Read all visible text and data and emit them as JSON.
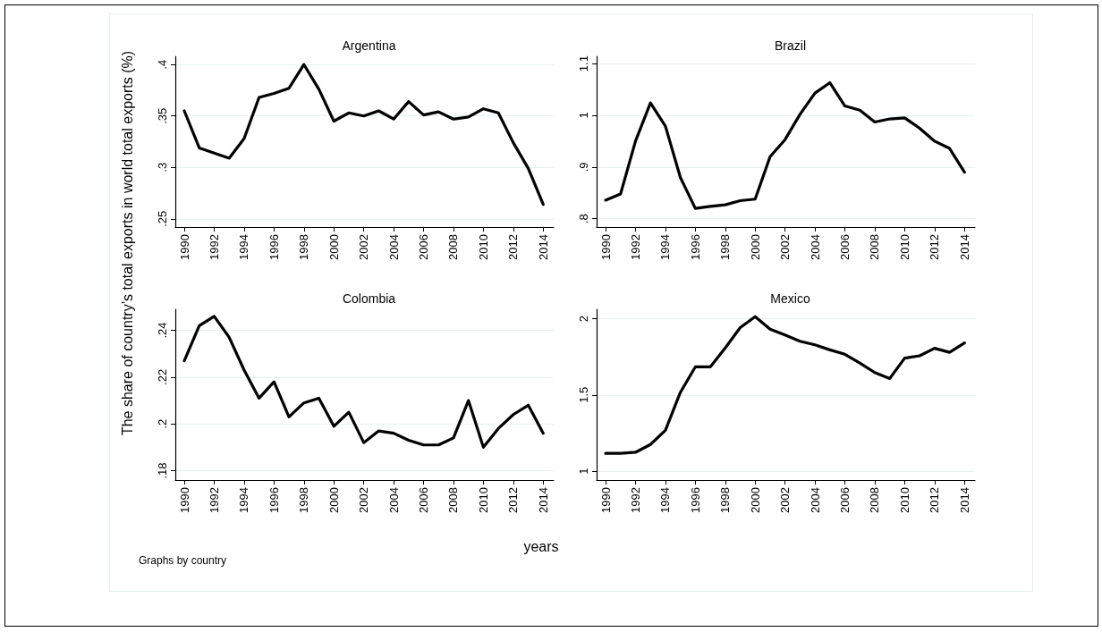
{
  "chart_data": [
    {
      "type": "line",
      "title": "Argentina",
      "ylabel": "The share of country’s total exports in world total exports (%)",
      "x": [
        1990,
        1991,
        1992,
        1993,
        1994,
        1995,
        1996,
        1997,
        1998,
        1999,
        2000,
        2001,
        2002,
        2003,
        2004,
        2005,
        2006,
        2007,
        2008,
        2009,
        2010,
        2011,
        2012,
        2013,
        2014
      ],
      "series": [
        {
          "color": "#000000",
          "values": [
            0.355,
            0.319,
            0.314,
            0.309,
            0.328,
            0.368,
            0.372,
            0.377,
            0.4,
            0.376,
            0.345,
            0.353,
            0.35,
            0.355,
            0.347,
            0.364,
            0.351,
            0.354,
            0.347,
            0.349,
            0.357,
            0.353,
            0.324,
            0.299,
            0.264
          ]
        }
      ],
      "xlim": [
        1989.4,
        2014.7
      ],
      "xticks": [
        1990,
        1992,
        1994,
        1996,
        1998,
        2000,
        2002,
        2004,
        2006,
        2008,
        2010,
        2012,
        2014
      ],
      "ylim": [
        0.242,
        0.408
      ],
      "yticks": [
        {
          "value": 0.25,
          "label": ".25"
        },
        {
          "value": 0.3,
          "label": ".3"
        },
        {
          "value": 0.35,
          "label": ".35"
        },
        {
          "value": 0.4,
          "label": ".4"
        }
      ],
      "grid": "y",
      "marker": "none",
      "line_style": "solid"
    },
    {
      "type": "line",
      "title": "Brazil",
      "x": [
        1990,
        1991,
        1992,
        1993,
        1994,
        1995,
        1996,
        1997,
        1998,
        1999,
        2000,
        2001,
        2002,
        2003,
        2004,
        2005,
        2006,
        2007,
        2008,
        2009,
        2010,
        2011,
        2012,
        2013,
        2014
      ],
      "series": [
        {
          "color": "#000000",
          "values": [
            0.836,
            0.848,
            0.95,
            1.024,
            0.979,
            0.88,
            0.82,
            0.824,
            0.827,
            0.835,
            0.838,
            0.92,
            0.953,
            1.002,
            1.043,
            1.063,
            1.018,
            1.01,
            0.987,
            0.993,
            0.995,
            0.975,
            0.95,
            0.936,
            0.89
          ]
        }
      ],
      "xlim": [
        1989.4,
        2014.7
      ],
      "xticks": [
        1990,
        1992,
        1994,
        1996,
        1998,
        2000,
        2002,
        2004,
        2006,
        2008,
        2010,
        2012,
        2014
      ],
      "ylim": [
        0.784,
        1.114
      ],
      "yticks": [
        {
          "value": 0.8,
          "label": ".8"
        },
        {
          "value": 0.9,
          "label": ".9"
        },
        1,
        1.1
      ],
      "grid": "y",
      "marker": "none",
      "line_style": "solid"
    },
    {
      "type": "line",
      "title": "Colombia",
      "xlabel": "years",
      "annotations": [
        "Graphs by country"
      ],
      "x": [
        1990,
        1991,
        1992,
        1993,
        1994,
        1995,
        1996,
        1997,
        1998,
        1999,
        2000,
        2001,
        2002,
        2003,
        2004,
        2005,
        2006,
        2007,
        2008,
        2009,
        2010,
        2011,
        2012,
        2013,
        2014
      ],
      "series": [
        {
          "color": "#000000",
          "values": [
            0.227,
            0.242,
            0.246,
            0.237,
            0.223,
            0.211,
            0.218,
            0.203,
            0.209,
            0.211,
            0.199,
            0.205,
            0.192,
            0.197,
            0.196,
            0.193,
            0.191,
            0.191,
            0.194,
            0.21,
            0.19,
            0.198,
            0.204,
            0.208,
            0.196
          ]
        }
      ],
      "xlim": [
        1989.4,
        2014.7
      ],
      "xticks": [
        1990,
        1992,
        1994,
        1996,
        1998,
        2000,
        2002,
        2004,
        2006,
        2008,
        2010,
        2012,
        2014
      ],
      "ylim": [
        0.176,
        0.249
      ],
      "yticks": [
        {
          "value": 0.18,
          "label": ".18"
        },
        {
          "value": 0.2,
          "label": ".2"
        },
        {
          "value": 0.22,
          "label": ".22"
        },
        {
          "value": 0.24,
          "label": ".24"
        }
      ],
      "grid": "y",
      "marker": "none",
      "line_style": "solid"
    },
    {
      "type": "line",
      "title": "Mexico",
      "x": [
        1990,
        1991,
        1992,
        1993,
        1994,
        1995,
        1996,
        1997,
        1998,
        1999,
        2000,
        2001,
        2002,
        2003,
        2004,
        2005,
        2006,
        2007,
        2008,
        2009,
        2010,
        2011,
        2012,
        2013,
        2014
      ],
      "series": [
        {
          "color": "#000000",
          "values": [
            1.117,
            1.117,
            1.124,
            1.175,
            1.268,
            1.517,
            1.684,
            1.684,
            1.808,
            1.942,
            2.014,
            1.932,
            1.893,
            1.852,
            1.829,
            1.796,
            1.767,
            1.709,
            1.647,
            1.608,
            1.742,
            1.757,
            1.806,
            1.78,
            1.841
          ]
        }
      ],
      "xlim": [
        1989.4,
        2014.7
      ],
      "xticks": [
        1990,
        1992,
        1994,
        1996,
        1998,
        2000,
        2002,
        2004,
        2006,
        2008,
        2010,
        2012,
        2014
      ],
      "ylim": [
        0.942,
        2.062
      ],
      "yticks": [
        1,
        1.5,
        2
      ],
      "grid": "y",
      "marker": "none",
      "line_style": "solid"
    }
  ]
}
